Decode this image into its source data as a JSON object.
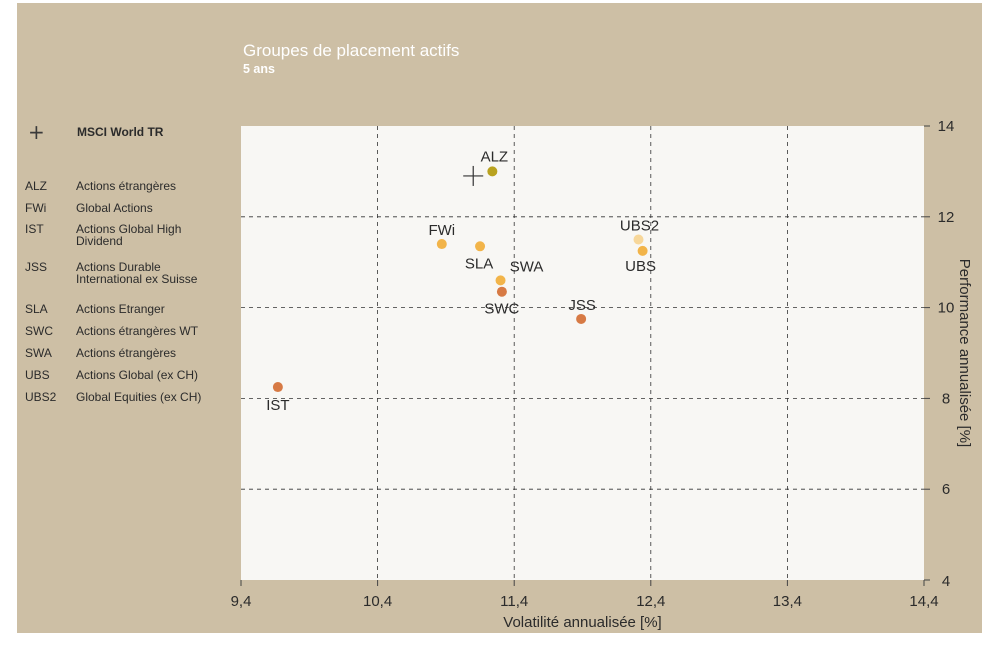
{
  "header": {
    "title": "Groupes de placement actifs",
    "subtitle": "5 ans"
  },
  "legend": {
    "benchmark": {
      "symbol": "+",
      "label": "MSCI World TR"
    },
    "items": [
      {
        "code": "ALZ",
        "label": "Actions étrangères"
      },
      {
        "code": "FWi",
        "label": "Global Actions"
      },
      {
        "code": "IST",
        "label": "Actions Global High Dividend"
      },
      {
        "code": "JSS",
        "label": "Actions Durable International ex Suisse"
      },
      {
        "code": "SLA",
        "label": "Actions Etranger"
      },
      {
        "code": "SWC",
        "label": "Actions étrangères WT"
      },
      {
        "code": "SWA",
        "label": "Actions étrangères"
      },
      {
        "code": "UBS",
        "label": "Actions Global (ex CH)"
      },
      {
        "code": "UBS2",
        "label": "Global Equities (ex CH)"
      }
    ]
  },
  "colors": {
    "background": "#cdbfa5",
    "plot_area": "#f8f7f4",
    "ALZ": "#b9a21f",
    "FWi": "#f2b449",
    "IST": "#d77a44",
    "JSS": "#d77a44",
    "SLA": "#f2b449",
    "SWC": "#d77a44",
    "SWA": "#f2b449",
    "UBS": "#f2b449",
    "UBS2": "#f7d79a"
  },
  "chart_data": {
    "type": "scatter",
    "title": "Groupes de placement actifs",
    "subtitle": "5 ans",
    "xlabel": "Volatilité annualisée [%]",
    "ylabel": "Performance annualisée [%]",
    "xlim": [
      9.4,
      14.4
    ],
    "ylim": [
      4,
      14
    ],
    "xticks": [
      "9,4",
      "10,4",
      "11,4",
      "12,4",
      "13,4",
      "14,4"
    ],
    "yticks": [
      "4",
      "6",
      "8",
      "10",
      "12",
      "14"
    ],
    "xtick_values": [
      9.4,
      10.4,
      11.4,
      12.4,
      13.4,
      14.4
    ],
    "ytick_values": [
      4,
      6,
      8,
      10,
      12,
      14
    ],
    "grid": true,
    "y_axis_position": "right",
    "benchmark": {
      "name": "MSCI World TR",
      "x": 11.1,
      "y": 12.9,
      "marker": "+"
    },
    "points": [
      {
        "label": "ALZ",
        "x": 11.24,
        "y": 13.0
      },
      {
        "label": "FWi",
        "x": 10.87,
        "y": 11.4
      },
      {
        "label": "SLA",
        "x": 11.15,
        "y": 11.35
      },
      {
        "label": "SWA",
        "x": 11.3,
        "y": 10.6
      },
      {
        "label": "SWC",
        "x": 11.31,
        "y": 10.35
      },
      {
        "label": "JSS",
        "x": 11.89,
        "y": 9.75
      },
      {
        "label": "UBS2",
        "x": 12.31,
        "y": 11.5
      },
      {
        "label": "UBS",
        "x": 12.34,
        "y": 11.25
      },
      {
        "label": "IST",
        "x": 9.67,
        "y": 8.25
      }
    ]
  }
}
